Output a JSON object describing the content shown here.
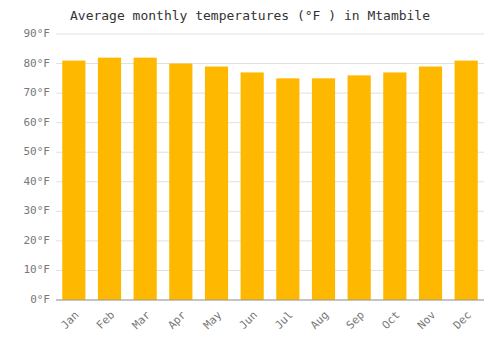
{
  "chart_data": {
    "type": "bar",
    "title": "Average monthly temperatures (°F ) in Mtambile",
    "categories": [
      "Jan",
      "Feb",
      "Mar",
      "Apr",
      "May",
      "Jun",
      "Jul",
      "Aug",
      "Sep",
      "Oct",
      "Nov",
      "Dec"
    ],
    "values": [
      81,
      82,
      82,
      80,
      79,
      77,
      75,
      75,
      76,
      77,
      79,
      81
    ],
    "color": "#FFB800",
    "ylim": [
      0,
      90
    ],
    "yticks": [
      {
        "value": 0,
        "label": "0°F"
      },
      {
        "value": 10,
        "label": "10°F"
      },
      {
        "value": 20,
        "label": "20°F"
      },
      {
        "value": 30,
        "label": "30°F"
      },
      {
        "value": 40,
        "label": "40°F"
      },
      {
        "value": 50,
        "label": "50°F"
      },
      {
        "value": 60,
        "label": "60°F"
      },
      {
        "value": 70,
        "label": "70°F"
      },
      {
        "value": 80,
        "label": "80°F"
      },
      {
        "value": 90,
        "label": "90°F"
      }
    ],
    "grid": true
  }
}
